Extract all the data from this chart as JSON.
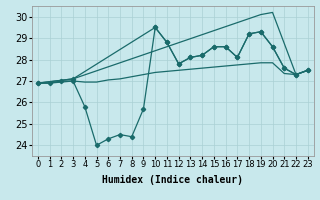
{
  "xlabel": "Humidex (Indice chaleur)",
  "bg_color": "#c8e8ec",
  "line_color": "#1a6b6b",
  "xlim": [
    -0.5,
    23.5
  ],
  "ylim": [
    23.5,
    30.5
  ],
  "yticks": [
    24,
    25,
    26,
    27,
    28,
    29,
    30
  ],
  "xticks": [
    0,
    1,
    2,
    3,
    4,
    5,
    6,
    7,
    8,
    9,
    10,
    11,
    12,
    13,
    14,
    15,
    16,
    17,
    18,
    19,
    20,
    21,
    22,
    23
  ],
  "line_flat": {
    "x": [
      0,
      1,
      2,
      3,
      4,
      5,
      6,
      7,
      8,
      9,
      10,
      11,
      12,
      13,
      14,
      15,
      16,
      17,
      18,
      19,
      20,
      21,
      22,
      23
    ],
    "y": [
      26.9,
      26.9,
      26.95,
      27.0,
      26.95,
      26.95,
      27.05,
      27.1,
      27.2,
      27.3,
      27.4,
      27.45,
      27.5,
      27.55,
      27.6,
      27.65,
      27.7,
      27.75,
      27.8,
      27.85,
      27.85,
      27.35,
      27.3,
      27.5
    ]
  },
  "line_diagonal": {
    "x": [
      0,
      3,
      19,
      20,
      22,
      23
    ],
    "y": [
      26.9,
      27.1,
      30.1,
      30.2,
      27.3,
      27.5
    ]
  },
  "line_markers": {
    "x": [
      0,
      3,
      10,
      11,
      12,
      13,
      14,
      15,
      16,
      17,
      18,
      19,
      20,
      21,
      22,
      23
    ],
    "y": [
      26.9,
      27.1,
      29.5,
      28.8,
      27.8,
      28.1,
      28.2,
      28.6,
      28.6,
      28.1,
      29.2,
      29.3,
      28.6,
      27.6,
      27.3,
      27.5
    ]
  },
  "line_jagged": {
    "x": [
      0,
      1,
      2,
      3,
      4,
      5,
      6,
      7,
      8,
      9,
      10,
      11,
      12,
      13,
      14,
      15,
      16,
      17,
      18,
      19,
      20,
      21,
      22,
      23
    ],
    "y": [
      26.9,
      26.9,
      27.0,
      27.0,
      25.8,
      24.0,
      24.3,
      24.5,
      24.4,
      25.7,
      29.5,
      28.8,
      27.8,
      28.1,
      28.2,
      28.6,
      28.6,
      28.1,
      29.2,
      29.3,
      28.6,
      27.6,
      27.3,
      27.5
    ]
  },
  "grid_color": "#aad0d4",
  "tick_fontsize": 6,
  "label_fontsize": 7
}
